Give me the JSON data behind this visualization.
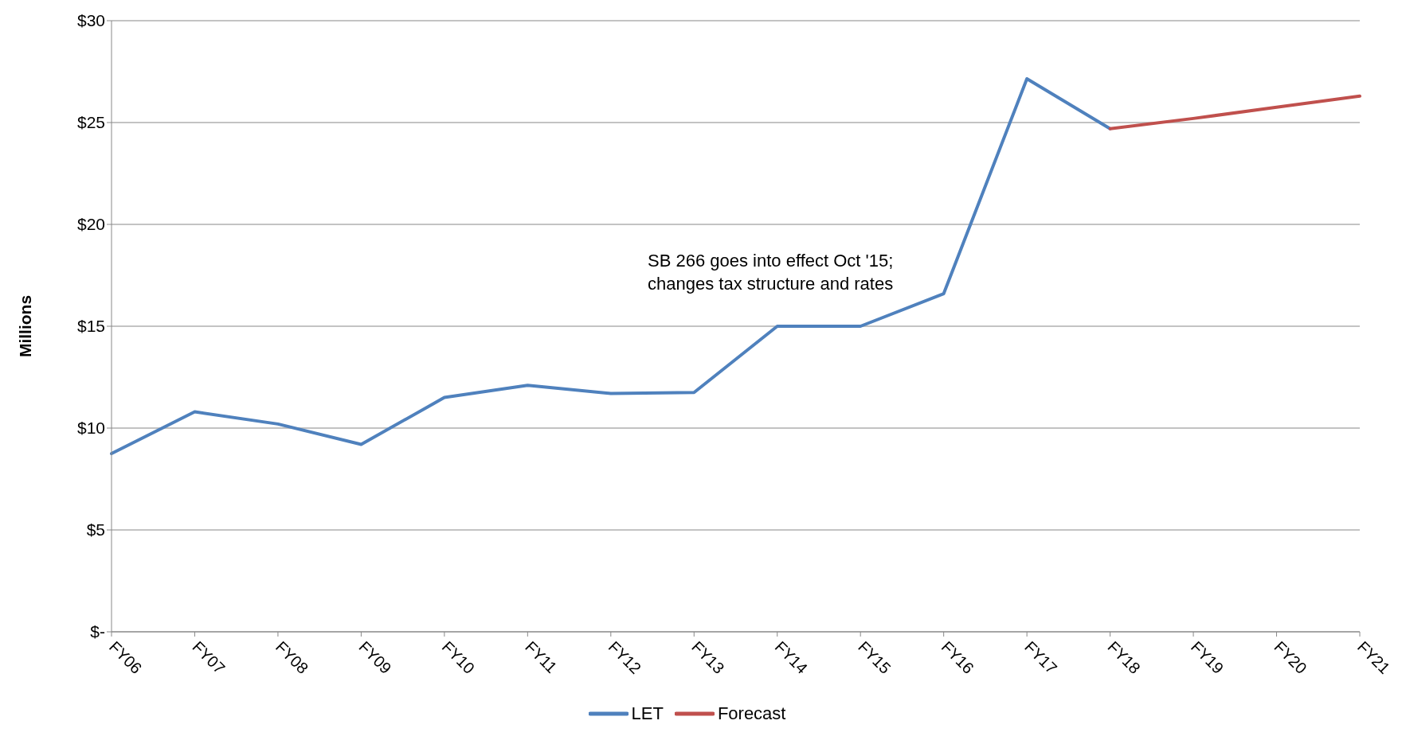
{
  "chart_data": {
    "type": "line",
    "ylabel": "Millions",
    "categories": [
      "FY06",
      "FY07",
      "FY08",
      "FY09",
      "FY10",
      "FY11",
      "FY12",
      "FY13",
      "FY14",
      "FY15",
      "FY16",
      "FY17",
      "FY18",
      "FY19",
      "FY20",
      "FY21"
    ],
    "series": [
      {
        "name": "LET",
        "color": "#4f81bd",
        "values": [
          8.75,
          10.8,
          10.2,
          9.2,
          11.5,
          12.1,
          11.7,
          11.75,
          15.0,
          15.0,
          16.6,
          27.15,
          24.7,
          null,
          null,
          null
        ]
      },
      {
        "name": "Forecast",
        "color": "#c0504d",
        "values": [
          null,
          null,
          null,
          null,
          null,
          null,
          null,
          null,
          null,
          null,
          null,
          null,
          24.7,
          25.2,
          25.75,
          26.3
        ]
      }
    ],
    "ylim": [
      0,
      30
    ],
    "yticks": [
      {
        "value": 0,
        "label": "$-"
      },
      {
        "value": 5,
        "label": "$5"
      },
      {
        "value": 10,
        "label": "$10"
      },
      {
        "value": 15,
        "label": "$15"
      },
      {
        "value": 20,
        "label": "$20"
      },
      {
        "value": 25,
        "label": "$25"
      },
      {
        "value": 30,
        "label": "$30"
      }
    ],
    "grid": "y",
    "legend": "bottom",
    "marker": "none",
    "line_style": "solid",
    "annotations": [
      "SB 266 goes into effect Oct '15;\nchanges tax structure and rates"
    ]
  }
}
